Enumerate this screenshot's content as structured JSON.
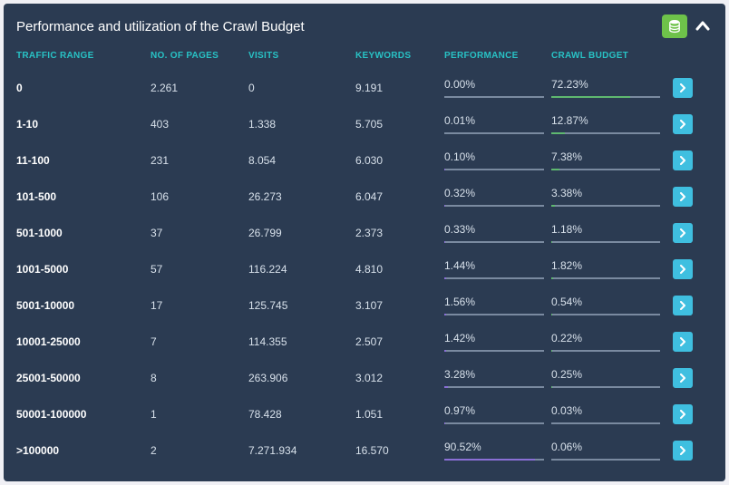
{
  "panel": {
    "title": "Performance and utilization of the Crawl Budget"
  },
  "columns": {
    "traffic_range": "TRAFFIC RANGE",
    "pages": "NO. OF PAGES",
    "visits": "VISITS",
    "keywords": "KEYWORDS",
    "performance": "PERFORMANCE",
    "crawl_budget": "CRAWL BUDGET"
  },
  "colors": {
    "header_text": "#28c2c5",
    "panel_bg": "#2b3b52",
    "bar_track": "#7a8aa0",
    "performance_bar": "#8a6fd6",
    "crawl_bar": "#5fb870",
    "go_btn": "#3fbfe0",
    "db_btn": "#6ec24a"
  },
  "rows": [
    {
      "range": "0",
      "pages": "2.261",
      "visits": "0",
      "keywords": "9.191",
      "performance": "0.00%",
      "performance_pct": 0.0,
      "crawl": "72.23%",
      "crawl_pct": 72.23
    },
    {
      "range": "1-10",
      "pages": "403",
      "visits": "1.338",
      "keywords": "5.705",
      "performance": "0.01%",
      "performance_pct": 0.01,
      "crawl": "12.87%",
      "crawl_pct": 12.87
    },
    {
      "range": "11-100",
      "pages": "231",
      "visits": "8.054",
      "keywords": "6.030",
      "performance": "0.10%",
      "performance_pct": 0.1,
      "crawl": "7.38%",
      "crawl_pct": 7.38
    },
    {
      "range": "101-500",
      "pages": "106",
      "visits": "26.273",
      "keywords": "6.047",
      "performance": "0.32%",
      "performance_pct": 0.32,
      "crawl": "3.38%",
      "crawl_pct": 3.38
    },
    {
      "range": "501-1000",
      "pages": "37",
      "visits": "26.799",
      "keywords": "2.373",
      "performance": "0.33%",
      "performance_pct": 0.33,
      "crawl": "1.18%",
      "crawl_pct": 1.18
    },
    {
      "range": "1001-5000",
      "pages": "57",
      "visits": "116.224",
      "keywords": "4.810",
      "performance": "1.44%",
      "performance_pct": 1.44,
      "crawl": "1.82%",
      "crawl_pct": 1.82
    },
    {
      "range": "5001-10000",
      "pages": "17",
      "visits": "125.745",
      "keywords": "3.107",
      "performance": "1.56%",
      "performance_pct": 1.56,
      "crawl": "0.54%",
      "crawl_pct": 0.54
    },
    {
      "range": "10001-25000",
      "pages": "7",
      "visits": "114.355",
      "keywords": "2.507",
      "performance": "1.42%",
      "performance_pct": 1.42,
      "crawl": "0.22%",
      "crawl_pct": 0.22
    },
    {
      "range": "25001-50000",
      "pages": "8",
      "visits": "263.906",
      "keywords": "3.012",
      "performance": "3.28%",
      "performance_pct": 3.28,
      "crawl": "0.25%",
      "crawl_pct": 0.25
    },
    {
      "range": "50001-100000",
      "pages": "1",
      "visits": "78.428",
      "keywords": "1.051",
      "performance": "0.97%",
      "performance_pct": 0.97,
      "crawl": "0.03%",
      "crawl_pct": 0.03
    },
    {
      "range": ">100000",
      "pages": "2",
      "visits": "7.271.934",
      "keywords": "16.570",
      "performance": "90.52%",
      "performance_pct": 90.52,
      "crawl": "0.06%",
      "crawl_pct": 0.06
    }
  ]
}
